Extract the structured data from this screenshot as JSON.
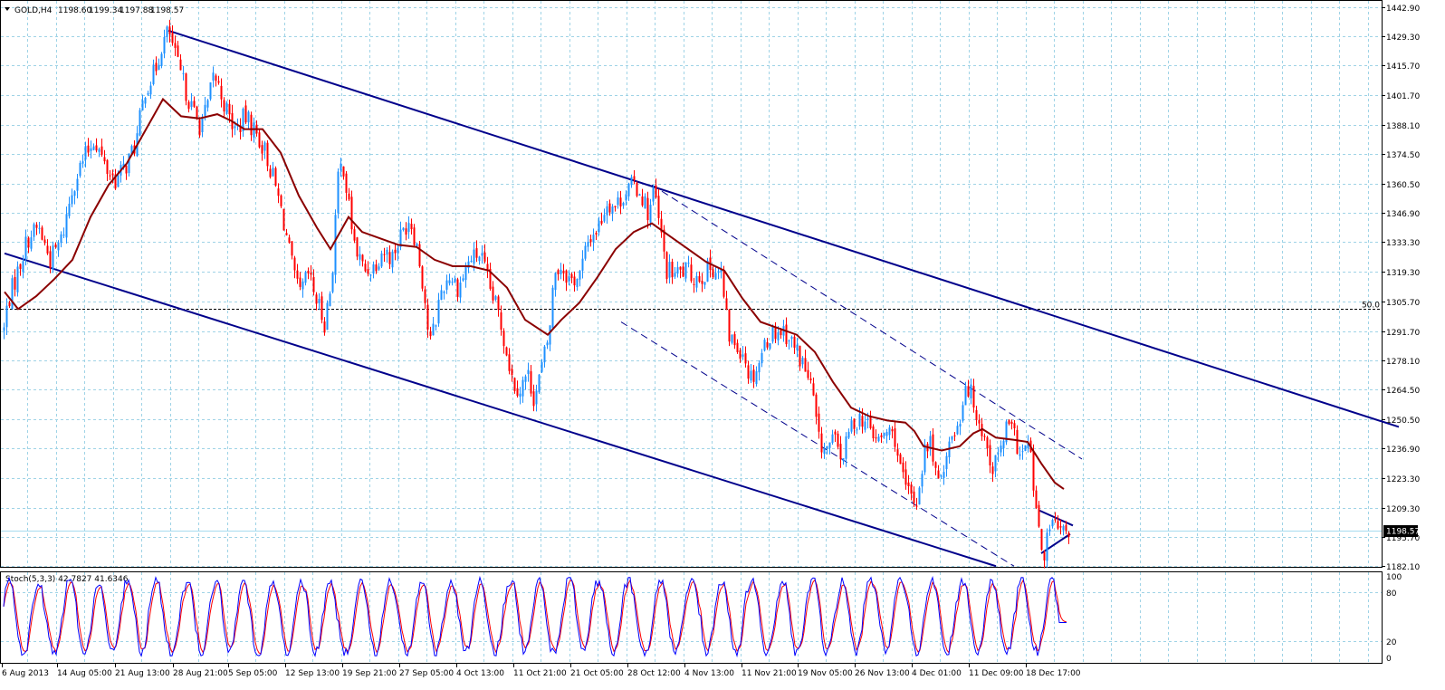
{
  "chart_data": {
    "type": "candlestick",
    "header": {
      "symbol": "GOLD,H4",
      "ohlc": [
        "1198.60",
        "1199.34",
        "1197.88",
        "1198.57"
      ]
    },
    "y_axis": {
      "ticks": [
        "1442.90",
        "1429.30",
        "1415.70",
        "1401.70",
        "1388.10",
        "1374.50",
        "1360.50",
        "1346.90",
        "1333.30",
        "1319.30",
        "1305.70",
        "1291.70",
        "1278.10",
        "1264.50",
        "1250.50",
        "1236.90",
        "1223.30",
        "1209.30",
        "1195.70",
        "1182.10"
      ],
      "range": [
        1180,
        1444
      ]
    },
    "x_axis": {
      "ticks": [
        "6 Aug 2013",
        "14 Aug 05:00",
        "21 Aug 13:00",
        "28 Aug 21:00",
        "5 Sep 05:00",
        "12 Sep 13:00",
        "19 Sep 21:00",
        "27 Sep 05:00",
        "4 Oct 13:00",
        "11 Oct 21:00",
        "21 Oct 05:00",
        "28 Oct 12:00",
        "4 Nov 13:00",
        "11 Nov 21:00",
        "19 Nov 05:00",
        "26 Nov 13:00",
        "4 Dec 01:00",
        "11 Dec 09:00",
        "18 Dec 17:00"
      ]
    },
    "current_price": "1198.57",
    "fib_level": {
      "label": "50.0",
      "value": 1302.2
    },
    "price_path": [
      [
        0,
        1280
      ],
      [
        8,
        1305
      ],
      [
        18,
        1318
      ],
      [
        30,
        1335
      ],
      [
        42,
        1340
      ],
      [
        55,
        1325
      ],
      [
        68,
        1335
      ],
      [
        80,
        1360
      ],
      [
        92,
        1372
      ],
      [
        104,
        1382
      ],
      [
        116,
        1368
      ],
      [
        128,
        1362
      ],
      [
        140,
        1370
      ],
      [
        150,
        1380
      ],
      [
        160,
        1405
      ],
      [
        170,
        1412
      ],
      [
        178,
        1425
      ],
      [
        186,
        1432
      ],
      [
        194,
        1418
      ],
      [
        204,
        1405
      ],
      [
        212,
        1395
      ],
      [
        220,
        1388
      ],
      [
        228,
        1395
      ],
      [
        236,
        1412
      ],
      [
        244,
        1402
      ],
      [
        252,
        1392
      ],
      [
        260,
        1385
      ],
      [
        270,
        1392
      ],
      [
        280,
        1386
      ],
      [
        292,
        1376
      ],
      [
        302,
        1362
      ],
      [
        312,
        1345
      ],
      [
        322,
        1322
      ],
      [
        330,
        1308
      ],
      [
        340,
        1318
      ],
      [
        350,
        1305
      ],
      [
        358,
        1296
      ],
      [
        366,
        1315
      ],
      [
        372,
        1360
      ],
      [
        378,
        1372
      ],
      [
        384,
        1352
      ],
      [
        392,
        1330
      ],
      [
        402,
        1320
      ],
      [
        412,
        1322
      ],
      [
        422,
        1330
      ],
      [
        432,
        1326
      ],
      [
        442,
        1336
      ],
      [
        452,
        1345
      ],
      [
        460,
        1332
      ],
      [
        468,
        1310
      ],
      [
        474,
        1285
      ],
      [
        480,
        1295
      ],
      [
        486,
        1310
      ],
      [
        496,
        1318
      ],
      [
        506,
        1312
      ],
      [
        518,
        1325
      ],
      [
        530,
        1328
      ],
      [
        540,
        1312
      ],
      [
        550,
        1300
      ],
      [
        558,
        1285
      ],
      [
        566,
        1268
      ],
      [
        574,
        1265
      ],
      [
        582,
        1272
      ],
      [
        590,
        1260
      ],
      [
        598,
        1275
      ],
      [
        606,
        1290
      ],
      [
        612,
        1320
      ],
      [
        620,
        1322
      ],
      [
        630,
        1315
      ],
      [
        640,
        1318
      ],
      [
        650,
        1335
      ],
      [
        660,
        1340
      ],
      [
        670,
        1352
      ],
      [
        680,
        1350
      ],
      [
        690,
        1357
      ],
      [
        700,
        1360
      ],
      [
        708,
        1356
      ],
      [
        716,
        1346
      ],
      [
        722,
        1358
      ],
      [
        728,
        1340
      ],
      [
        736,
        1320
      ],
      [
        746,
        1318
      ],
      [
        756,
        1320
      ],
      [
        766,
        1317
      ],
      [
        776,
        1318
      ],
      [
        786,
        1322
      ],
      [
        796,
        1318
      ],
      [
        804,
        1290
      ],
      [
        812,
        1285
      ],
      [
        820,
        1283
      ],
      [
        828,
        1270
      ],
      [
        836,
        1275
      ],
      [
        846,
        1288
      ],
      [
        856,
        1292
      ],
      [
        866,
        1292
      ],
      [
        876,
        1285
      ],
      [
        886,
        1277
      ],
      [
        896,
        1265
      ],
      [
        904,
        1240
      ],
      [
        912,
        1236
      ],
      [
        920,
        1241
      ],
      [
        930,
        1232
      ],
      [
        940,
        1248
      ],
      [
        950,
        1252
      ],
      [
        960,
        1246
      ],
      [
        970,
        1240
      ],
      [
        980,
        1245
      ],
      [
        988,
        1242
      ],
      [
        996,
        1222
      ],
      [
        1004,
        1215
      ],
      [
        1012,
        1212
      ],
      [
        1020,
        1235
      ],
      [
        1028,
        1240
      ],
      [
        1036,
        1218
      ],
      [
        1044,
        1235
      ],
      [
        1052,
        1243
      ],
      [
        1060,
        1252
      ],
      [
        1066,
        1268
      ],
      [
        1072,
        1262
      ],
      [
        1080,
        1252
      ],
      [
        1088,
        1240
      ],
      [
        1096,
        1228
      ],
      [
        1104,
        1235
      ],
      [
        1112,
        1248
      ],
      [
        1120,
        1242
      ],
      [
        1128,
        1233
      ],
      [
        1136,
        1240
      ],
      [
        1142,
        1215
      ],
      [
        1148,
        1192
      ],
      [
        1154,
        1188
      ],
      [
        1160,
        1202
      ],
      [
        1166,
        1200
      ],
      [
        1172,
        1196
      ],
      [
        1178,
        1198.57
      ]
    ],
    "ma_path": [
      [
        5,
        1310
      ],
      [
        20,
        1302
      ],
      [
        40,
        1308
      ],
      [
        60,
        1316
      ],
      [
        80,
        1325
      ],
      [
        100,
        1345
      ],
      [
        120,
        1360
      ],
      [
        140,
        1370
      ],
      [
        160,
        1385
      ],
      [
        180,
        1400
      ],
      [
        200,
        1392
      ],
      [
        220,
        1391
      ],
      [
        240,
        1393
      ],
      [
        255,
        1390
      ],
      [
        270,
        1386
      ],
      [
        290,
        1386
      ],
      [
        310,
        1375
      ],
      [
        330,
        1355
      ],
      [
        350,
        1340
      ],
      [
        365,
        1330
      ],
      [
        385,
        1345
      ],
      [
        400,
        1338
      ],
      [
        420,
        1335
      ],
      [
        440,
        1332
      ],
      [
        460,
        1331
      ],
      [
        480,
        1325
      ],
      [
        500,
        1322
      ],
      [
        520,
        1322
      ],
      [
        540,
        1320
      ],
      [
        560,
        1312
      ],
      [
        580,
        1297
      ],
      [
        605,
        1290
      ],
      [
        620,
        1297
      ],
      [
        640,
        1305
      ],
      [
        660,
        1317
      ],
      [
        680,
        1330
      ],
      [
        700,
        1338
      ],
      [
        720,
        1342
      ],
      [
        740,
        1336
      ],
      [
        760,
        1330
      ],
      [
        780,
        1324
      ],
      [
        800,
        1320
      ],
      [
        820,
        1307
      ],
      [
        840,
        1296
      ],
      [
        860,
        1293
      ],
      [
        880,
        1290
      ],
      [
        900,
        1282
      ],
      [
        920,
        1268
      ],
      [
        940,
        1256
      ],
      [
        960,
        1252
      ],
      [
        980,
        1250
      ],
      [
        1000,
        1249
      ],
      [
        1010,
        1245
      ],
      [
        1020,
        1238
      ],
      [
        1040,
        1236
      ],
      [
        1060,
        1238
      ],
      [
        1075,
        1244
      ],
      [
        1085,
        1246
      ],
      [
        1100,
        1242
      ],
      [
        1120,
        1241
      ],
      [
        1135,
        1240
      ],
      [
        1150,
        1230
      ],
      [
        1165,
        1221
      ],
      [
        1175,
        1218
      ]
    ],
    "trendlines": [
      {
        "name": "channel-top",
        "style": "solid",
        "color": "#00008b",
        "points": [
          [
            186,
            1432
          ],
          [
            1545,
            1247
          ]
        ]
      },
      {
        "name": "channel-bottom",
        "style": "solid",
        "color": "#00008b",
        "points": [
          [
            5,
            1328
          ],
          [
            1100,
            1182
          ]
        ]
      },
      {
        "name": "dash-top",
        "style": "dashed",
        "color": "#00008b",
        "points": [
          [
            720,
            1360
          ],
          [
            1195,
            1232
          ]
        ]
      },
      {
        "name": "dash-bottom",
        "style": "dashed",
        "color": "#00008b",
        "points": [
          [
            686,
            1296
          ],
          [
            1120,
            1182
          ]
        ]
      },
      {
        "name": "tri-top",
        "style": "solid",
        "color": "#00008b",
        "points": [
          [
            1148,
            1208
          ],
          [
            1185,
            1201
          ]
        ]
      },
      {
        "name": "tri-bottom",
        "style": "solid",
        "color": "#00008b",
        "points": [
          [
            1150,
            1188
          ],
          [
            1182,
            1197
          ]
        ]
      }
    ],
    "indicator": {
      "label": "Stoch(5,3,3) 42.7827 41.6346",
      "levels": [
        "100",
        "80",
        "20",
        "0"
      ],
      "main_color": "#0000ff",
      "signal_color": "#ff0000"
    },
    "colors": {
      "bull": "#1e90ff",
      "bear": "#ff0000",
      "ma": "#8b0000",
      "grid": "#9fd3e6",
      "channel": "#00008b",
      "current_line": "#a8dcef"
    }
  }
}
